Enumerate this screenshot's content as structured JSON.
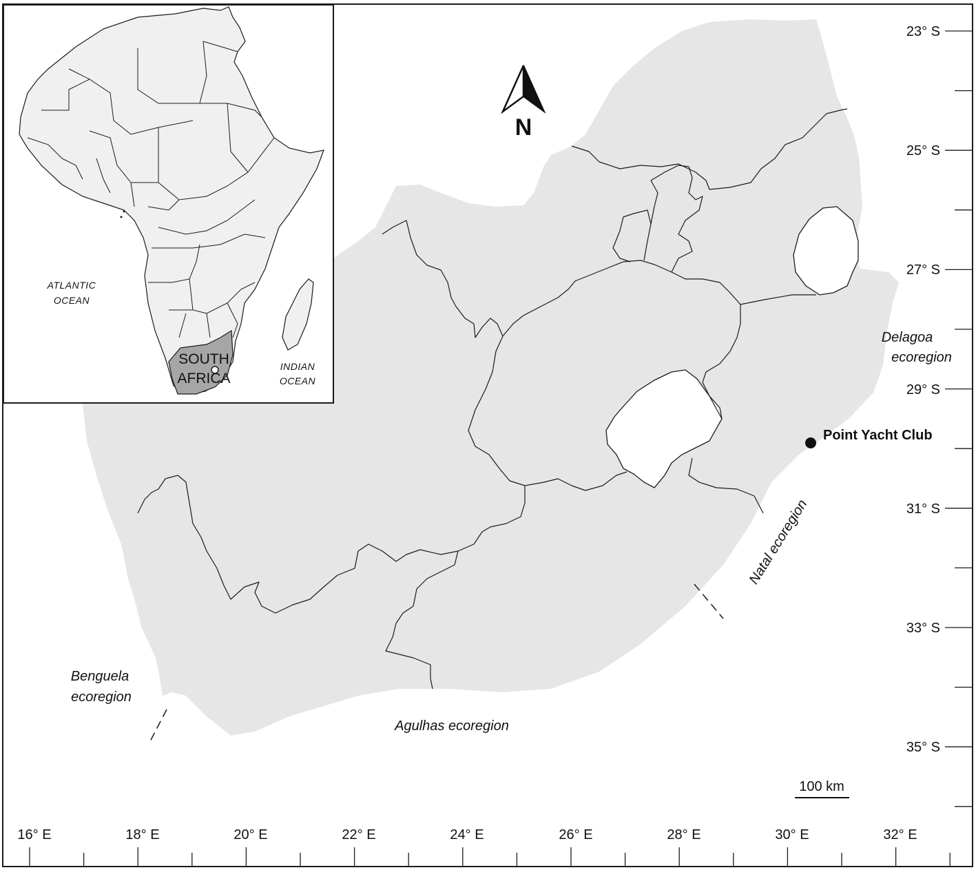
{
  "map": {
    "north_label": "N",
    "site_label": "Point Yacht Club",
    "scale_label": "100 km",
    "latitude_labels": [
      "23° S",
      "25° S",
      "27° S",
      "29° S",
      "31° S",
      "33° S",
      "35° S"
    ],
    "longitude_labels": [
      "16° E",
      "18° E",
      "20° E",
      "22° E",
      "24° E",
      "26° E",
      "28° E",
      "30° E",
      "32° E"
    ],
    "ecoregions": {
      "delagoa": [
        "Delagoa",
        "ecoregion"
      ],
      "natal": "Natal ecoregion",
      "benguela": [
        "Benguela",
        "ecoregion"
      ],
      "agulhas": "Agulhas ecoregion"
    },
    "inset": {
      "atlantic": [
        "ATLANTIC",
        "OCEAN"
      ],
      "indian": [
        "INDIAN",
        "OCEAN"
      ],
      "country": [
        "SOUTH",
        "AFRICA"
      ]
    },
    "colors": {
      "land": "#e6e6e6",
      "inset_land": "#f0f0f0",
      "inset_highlight": "#a6a6a6",
      "lines": "#1a1a1a"
    }
  }
}
